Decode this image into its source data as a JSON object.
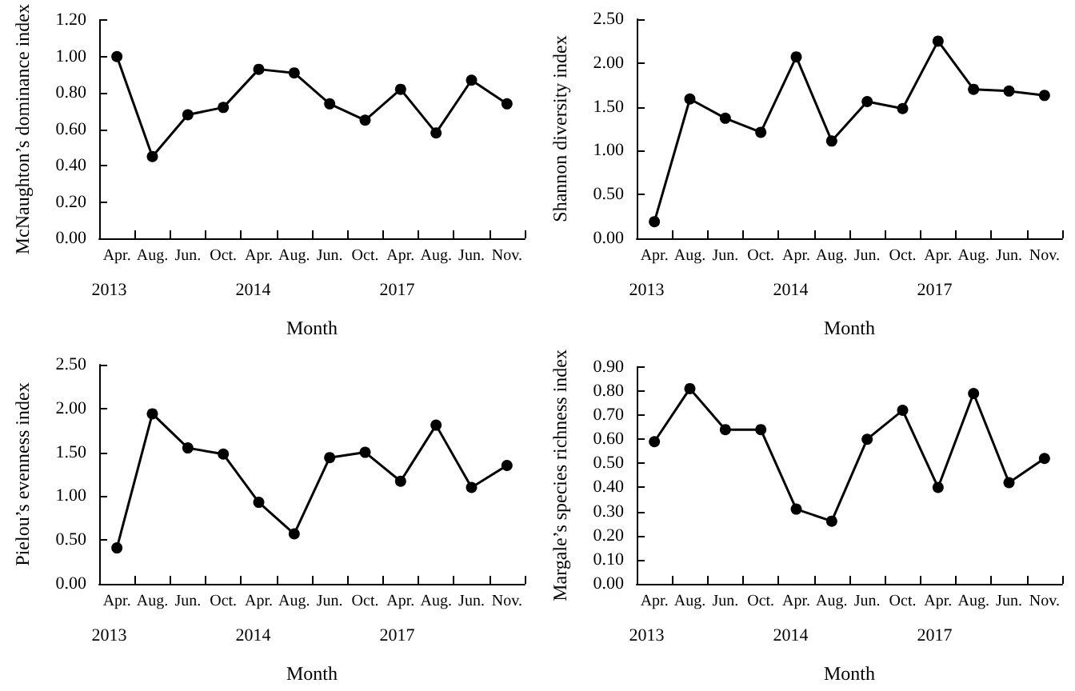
{
  "chart_data": [
    {
      "type": "line",
      "ylabel": "McNaughton’s dominance index",
      "xlabel": "Month",
      "categories": [
        "Apr.",
        "Aug.",
        "Jun.",
        "Oct.",
        "Apr.",
        "Aug.",
        "Jun.",
        "Oct.",
        "Apr.",
        "Aug.",
        "Jun.",
        "Nov."
      ],
      "series": [
        {
          "color": "#000000",
          "values": [
            1.0,
            0.45,
            0.68,
            0.72,
            0.93,
            0.91,
            0.74,
            0.65,
            0.82,
            0.58,
            0.87,
            0.74
          ]
        }
      ],
      "ylim": [
        0,
        1.2
      ],
      "yticks": [
        {
          "value": 0,
          "label": "0.00"
        },
        {
          "value": 0.2,
          "label": "0.20"
        },
        {
          "value": 0.4,
          "label": "0.40"
        },
        {
          "value": 0.6,
          "label": "0.60"
        },
        {
          "value": 0.8,
          "label": "0.80"
        },
        {
          "value": 1.0,
          "label": "1.00"
        },
        {
          "value": 1.2,
          "label": "1.20"
        }
      ],
      "annotations": [
        "2013",
        "2014",
        "2017"
      ],
      "grid": false,
      "marker": "circle",
      "line_style": "solid"
    },
    {
      "type": "line",
      "ylabel": "Shannon diversity index",
      "xlabel": "Month",
      "categories": [
        "Apr.",
        "Aug.",
        "Jun.",
        "Oct.",
        "Apr.",
        "Aug.",
        "Jun.",
        "Oct.",
        "Apr.",
        "Aug.",
        "Jun.",
        "Nov."
      ],
      "series": [
        {
          "color": "#000000",
          "values": [
            0.19,
            1.59,
            1.37,
            1.21,
            2.07,
            1.11,
            1.56,
            1.48,
            2.25,
            1.7,
            1.68,
            1.63
          ]
        }
      ],
      "ylim": [
        0,
        2.5
      ],
      "yticks": [
        {
          "value": 0,
          "label": "0.00"
        },
        {
          "value": 0.5,
          "label": "0.50"
        },
        {
          "value": 1.0,
          "label": "1.00"
        },
        {
          "value": 1.5,
          "label": "1.50"
        },
        {
          "value": 2.0,
          "label": "2.00"
        },
        {
          "value": 2.5,
          "label": "2.50"
        }
      ],
      "annotations": [
        "2013",
        "2014",
        "2017"
      ],
      "grid": false,
      "marker": "circle",
      "line_style": "solid"
    },
    {
      "type": "line",
      "ylabel": "Pielou’s evenness index",
      "xlabel": "Month",
      "categories": [
        "Apr.",
        "Aug.",
        "Jun.",
        "Oct.",
        "Apr.",
        "Aug.",
        "Jun.",
        "Oct.",
        "Apr.",
        "Aug.",
        "Jun.",
        "Nov."
      ],
      "series": [
        {
          "color": "#000000",
          "values": [
            0.41,
            1.94,
            1.55,
            1.48,
            0.93,
            0.57,
            1.44,
            1.5,
            1.17,
            1.81,
            1.1,
            1.35
          ]
        }
      ],
      "ylim": [
        0,
        2.5
      ],
      "yticks": [
        {
          "value": 0,
          "label": "0.00"
        },
        {
          "value": 0.5,
          "label": "0.50"
        },
        {
          "value": 1.0,
          "label": "1.00"
        },
        {
          "value": 1.5,
          "label": "1.50"
        },
        {
          "value": 2.0,
          "label": "2.00"
        },
        {
          "value": 2.5,
          "label": "2.50"
        }
      ],
      "annotations": [
        "2013",
        "2014",
        "2017"
      ],
      "grid": false,
      "marker": "circle",
      "line_style": "solid"
    },
    {
      "type": "line",
      "ylabel": "Margale’s species richness index",
      "xlabel": "Month",
      "categories": [
        "Apr.",
        "Aug.",
        "Jun.",
        "Oct.",
        "Apr.",
        "Aug.",
        "Jun.",
        "Oct.",
        "Apr.",
        "Aug.",
        "Jun.",
        "Nov."
      ],
      "series": [
        {
          "color": "#000000",
          "values": [
            0.59,
            0.81,
            0.64,
            0.64,
            0.31,
            0.26,
            0.6,
            0.72,
            0.4,
            0.79,
            0.42,
            0.52
          ]
        }
      ],
      "ylim": [
        0,
        0.9
      ],
      "yticks": [
        {
          "value": 0,
          "label": "0.00"
        },
        {
          "value": 0.1,
          "label": "0.10"
        },
        {
          "value": 0.2,
          "label": "0.20"
        },
        {
          "value": 0.3,
          "label": "0.30"
        },
        {
          "value": 0.4,
          "label": "0.40"
        },
        {
          "value": 0.5,
          "label": "0.50"
        },
        {
          "value": 0.6,
          "label": "0.60"
        },
        {
          "value": 0.7,
          "label": "0.70"
        },
        {
          "value": 0.8,
          "label": "0.80"
        },
        {
          "value": 0.9,
          "label": "0.90"
        }
      ],
      "annotations": [
        "2013",
        "2014",
        "2017"
      ],
      "grid": false,
      "marker": "circle",
      "line_style": "solid"
    }
  ]
}
